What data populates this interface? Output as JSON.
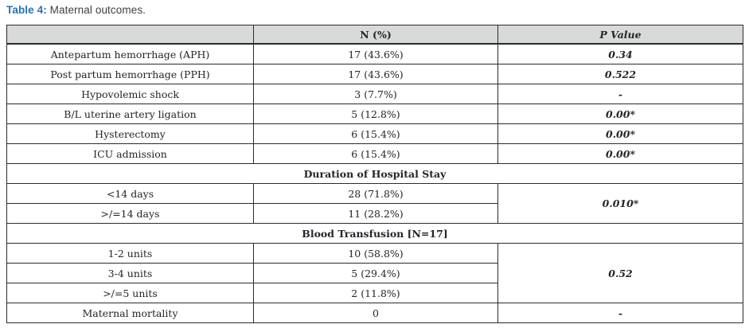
{
  "caption": {
    "label": "Table 4:",
    "text": " Maternal outcomes."
  },
  "table": {
    "header": {
      "col1": "",
      "col2": "N (%)",
      "col3": "P Value"
    },
    "rows": [
      {
        "label": "Antepartum hemorrhage (APH)",
        "n": "17 (43.6%)",
        "p": "0.34"
      },
      {
        "label": "Post partum hemorrhage (PPH)",
        "n": "17 (43.6%)",
        "p": "0.522"
      },
      {
        "label": "Hypovolemic shock",
        "n": "3 (7.7%)",
        "p": "-"
      },
      {
        "label": "B/L uterine artery ligation",
        "n": "5 (12.8%)",
        "p": "0.00*"
      },
      {
        "label": "Hysterectomy",
        "n": "6 (15.4%)",
        "p": "0.00*"
      },
      {
        "label": "ICU admission",
        "n": "6 (15.4%)",
        "p": "0.00*"
      }
    ],
    "sections": [
      {
        "title": "Duration of Hospital Stay",
        "rows": [
          {
            "label": "<14 days",
            "n": "28 (71.8%)"
          },
          {
            "label": ">/=14 days",
            "n": "11 (28.2%)"
          }
        ],
        "p": "0.010*"
      },
      {
        "title": "Blood Transfusion [N=17]",
        "rows": [
          {
            "label": "1-2 units",
            "n": "10 (58.8%)"
          },
          {
            "label": "3-4 units",
            "n": "5 (29.4%)"
          },
          {
            "label": ">/=5 units",
            "n": "2 (11.8%)"
          }
        ],
        "p": "0.52"
      }
    ],
    "footer_row": {
      "label": "Maternal mortality",
      "n": "0",
      "p": "-"
    }
  },
  "colors": {
    "caption_label": "#2472ba",
    "header_bg": "#d7dad9",
    "border": "#2b2b2b",
    "text": "#24242b"
  }
}
